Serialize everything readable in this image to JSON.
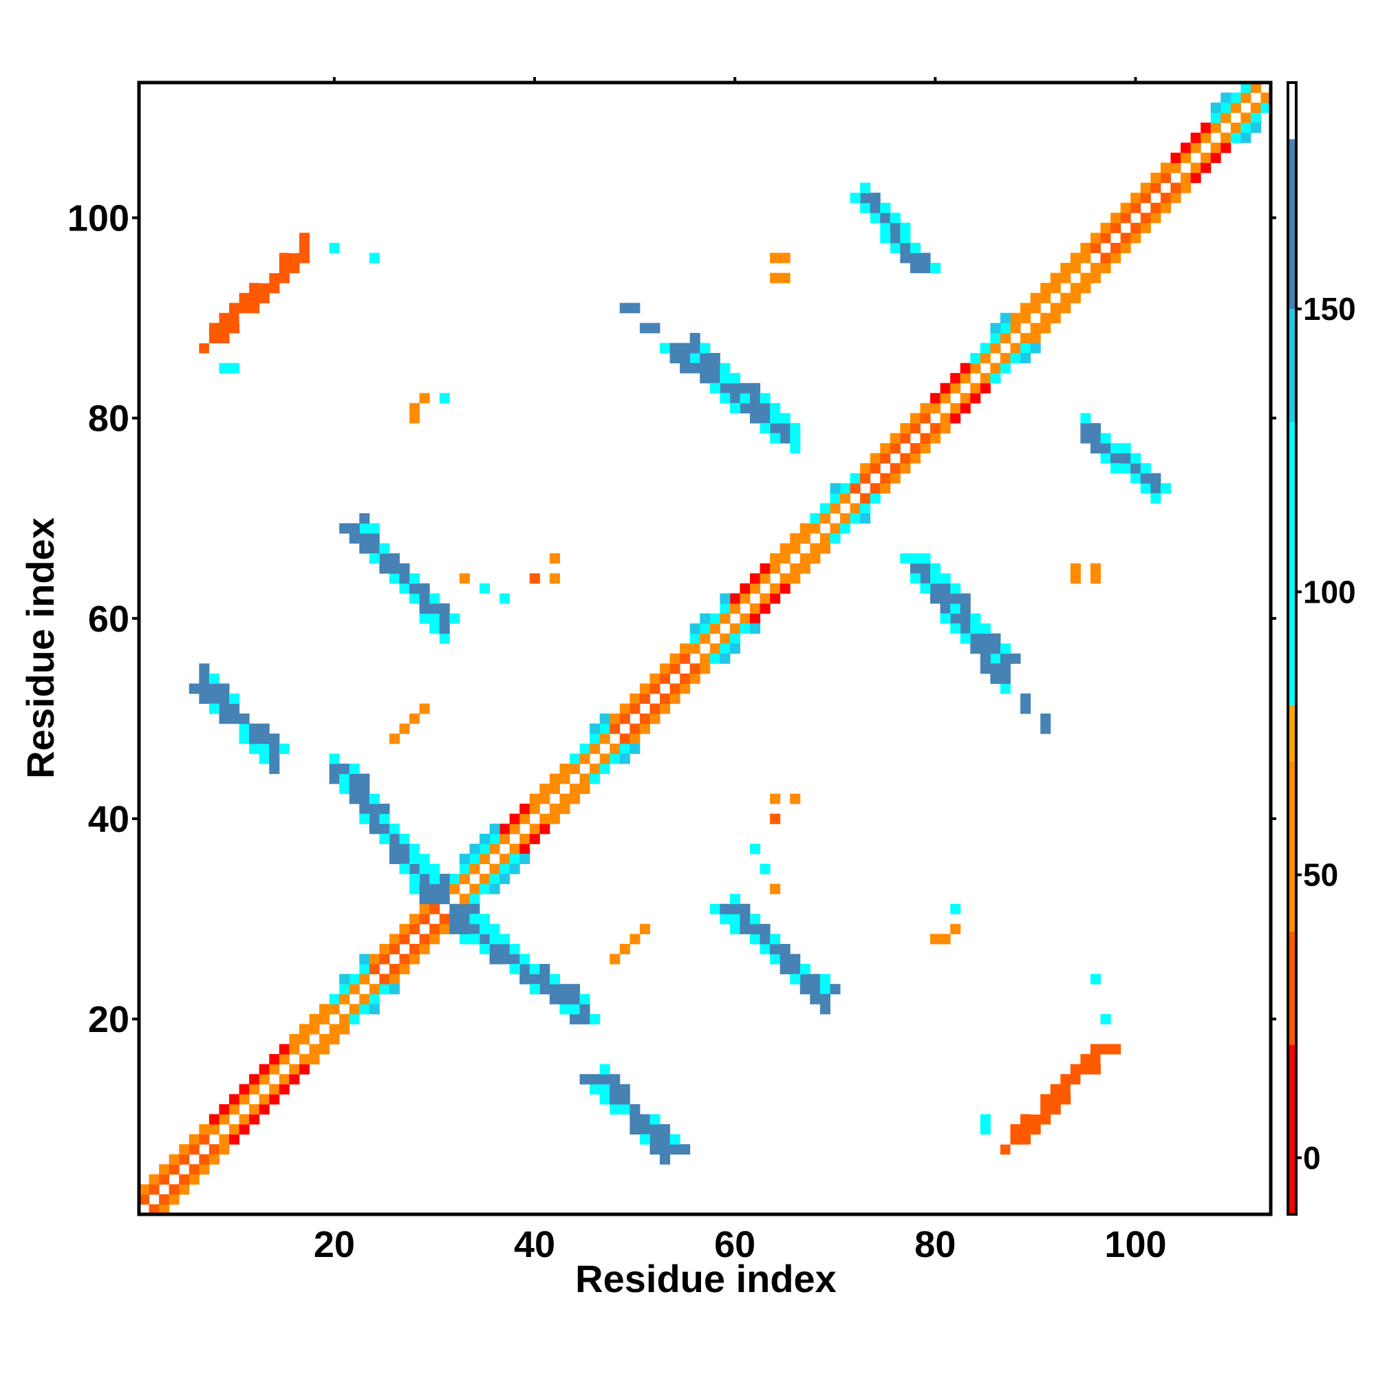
{
  "chart_data": {
    "type": "heatmap",
    "xlabel": "Residue index",
    "ylabel": "Residue index",
    "xlim": [
      0.5,
      113.5
    ],
    "ylim": [
      0.5,
      113.5
    ],
    "x_ticks": [
      20,
      40,
      60,
      80,
      100
    ],
    "y_ticks": [
      20,
      40,
      60,
      80,
      100
    ],
    "colorbar": {
      "range": [
        -10,
        190
      ],
      "ticks": [
        0,
        50,
        100,
        150
      ],
      "bands": [
        {
          "from": -10,
          "to": 20,
          "color": "#ff0000"
        },
        {
          "from": 20,
          "to": 40,
          "color": "#ff5a00"
        },
        {
          "from": 40,
          "to": 70,
          "color": "#ff8c00"
        },
        {
          "from": 70,
          "to": 80,
          "color": "#ffa500"
        },
        {
          "from": 80,
          "to": 130,
          "color": "#00ffff"
        },
        {
          "from": 130,
          "to": 150,
          "color": "#20c8e8"
        },
        {
          "from": 150,
          "to": 180,
          "color": "#4682b4"
        },
        {
          "from": 180,
          "to": 190,
          "color": "#ffffff"
        }
      ]
    },
    "note_values": "Cell values are pairwise angles between residues; estimated from the colour of each block.",
    "blocks": [
      {
        "x": [
          1,
          113
        ],
        "y": [
          1,
          113
        ],
        "band": "diagonal"
      },
      {
        "x": [
          7,
          17
        ],
        "y": [
          87,
          97
        ],
        "value": 25
      },
      {
        "x": [
          7,
          14
        ],
        "y": [
          46,
          54
        ],
        "value": 160
      },
      {
        "x": [
          20,
          31
        ],
        "y": [
          57,
          69
        ],
        "value": 160
      },
      {
        "x": [
          20,
          31
        ],
        "y": [
          31,
          45
        ],
        "value": 155
      },
      {
        "x": [
          32,
          45
        ],
        "y": [
          21,
          30
        ],
        "value": 155
      },
      {
        "x": [
          46,
          53
        ],
        "y": [
          7,
          14
        ],
        "value": 160
      },
      {
        "x": [
          56,
          66
        ],
        "y": [
          78,
          87
        ],
        "value": 160
      },
      {
        "x": [
          59,
          69
        ],
        "y": [
          22,
          31
        ],
        "value": 160
      },
      {
        "x": [
          72,
          78
        ],
        "y": [
          95,
          102
        ],
        "value": 160
      },
      {
        "x": [
          78,
          87
        ],
        "y": [
          54,
          65
        ],
        "value": 160
      },
      {
        "x": [
          95,
          102
        ],
        "y": [
          73,
          79
        ],
        "value": 160
      },
      {
        "x": [
          87,
          97
        ],
        "y": [
          7,
          17
        ],
        "value": 25
      }
    ]
  }
}
